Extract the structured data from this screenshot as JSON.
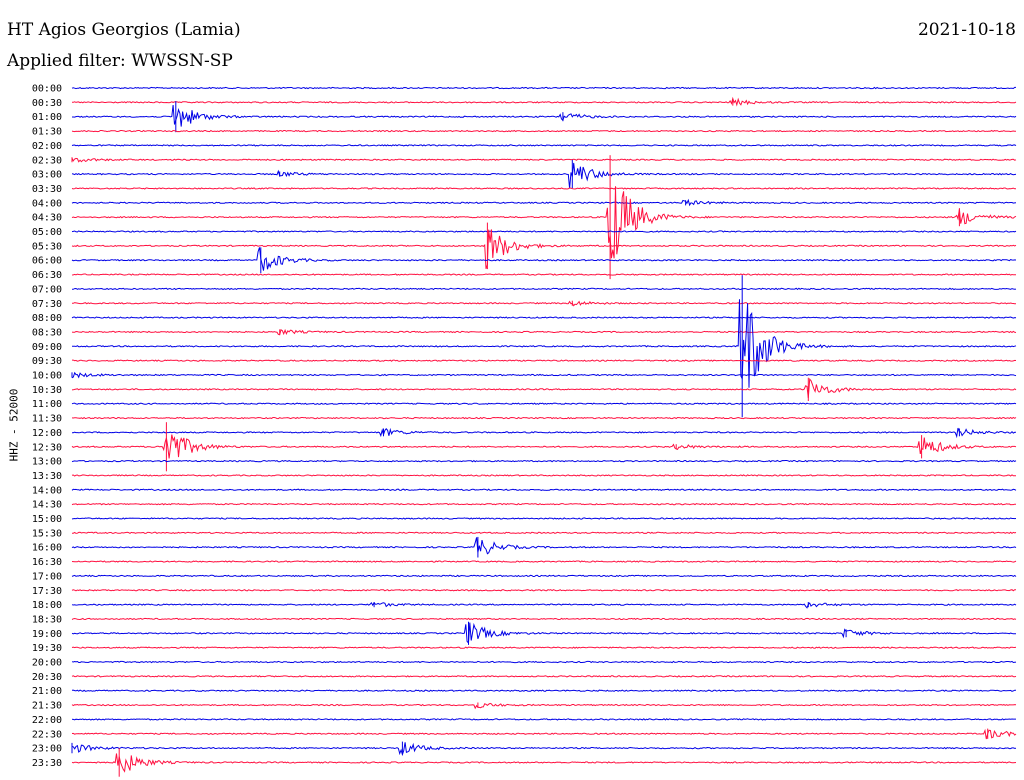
{
  "header": {
    "station": "HT Agios Georgios (Lamia)",
    "date": "2021-10-18",
    "filter": "Applied filter: WWSSN-SP",
    "channel_label": "HHZ - 52000"
  },
  "colors": {
    "blue": "#0000e6",
    "red": "#ff1040",
    "text": "#000000",
    "background": "#ffffff"
  },
  "chart_data": {
    "type": "helicorder",
    "title": "HT Agios Georgios (Lamia)",
    "date": "2021-10-18",
    "ylabel": "HHZ - 52000",
    "minutes_per_line": 30,
    "line_colors": [
      "blue",
      "red"
    ],
    "lines": [
      {
        "label": "00:00",
        "events": []
      },
      {
        "label": "00:30",
        "events": [
          {
            "t": 0.7,
            "amp": 0.25
          }
        ]
      },
      {
        "label": "01:00",
        "events": [
          {
            "t": 0.11,
            "amp": 1.2
          },
          {
            "t": 0.52,
            "amp": 0.35
          }
        ]
      },
      {
        "label": "01:30",
        "events": []
      },
      {
        "label": "02:00",
        "events": []
      },
      {
        "label": "02:30",
        "events": [
          {
            "t": 0.0,
            "amp": 0.2
          }
        ]
      },
      {
        "label": "03:00",
        "events": [
          {
            "t": 0.53,
            "amp": 1.1
          },
          {
            "t": 0.22,
            "amp": 0.2
          }
        ]
      },
      {
        "label": "03:30",
        "events": []
      },
      {
        "label": "04:00",
        "events": [
          {
            "t": 0.65,
            "amp": 0.2
          }
        ]
      },
      {
        "label": "04:30",
        "events": [
          {
            "t": 0.57,
            "amp": 4.8
          },
          {
            "t": 0.94,
            "amp": 0.7
          }
        ]
      },
      {
        "label": "05:00",
        "events": []
      },
      {
        "label": "05:30",
        "events": [
          {
            "t": 0.44,
            "amp": 1.8
          }
        ]
      },
      {
        "label": "06:00",
        "events": [
          {
            "t": 0.2,
            "amp": 1.0
          }
        ]
      },
      {
        "label": "06:30",
        "events": []
      },
      {
        "label": "07:00",
        "events": []
      },
      {
        "label": "07:30",
        "events": [
          {
            "t": 0.53,
            "amp": 0.2
          }
        ]
      },
      {
        "label": "08:00",
        "events": []
      },
      {
        "label": "08:30",
        "events": [
          {
            "t": 0.22,
            "amp": 0.2
          }
        ]
      },
      {
        "label": "09:00",
        "events": [
          {
            "t": 0.71,
            "amp": 5.5
          }
        ]
      },
      {
        "label": "09:30",
        "events": []
      },
      {
        "label": "10:00",
        "events": [
          {
            "t": 0.0,
            "amp": 0.2
          }
        ]
      },
      {
        "label": "10:30",
        "events": [
          {
            "t": 0.78,
            "amp": 0.9
          }
        ]
      },
      {
        "label": "11:00",
        "events": []
      },
      {
        "label": "11:30",
        "events": []
      },
      {
        "label": "12:00",
        "events": [
          {
            "t": 0.33,
            "amp": 0.3
          },
          {
            "t": 0.94,
            "amp": 0.3
          }
        ]
      },
      {
        "label": "12:30",
        "events": [
          {
            "t": 0.1,
            "amp": 1.9
          },
          {
            "t": 0.9,
            "amp": 0.9
          },
          {
            "t": 0.64,
            "amp": 0.2
          }
        ]
      },
      {
        "label": "13:00",
        "events": []
      },
      {
        "label": "13:30",
        "events": []
      },
      {
        "label": "14:00",
        "events": []
      },
      {
        "label": "14:30",
        "events": []
      },
      {
        "label": "15:00",
        "events": []
      },
      {
        "label": "15:30",
        "events": []
      },
      {
        "label": "16:00",
        "events": [
          {
            "t": 0.43,
            "amp": 0.8
          }
        ]
      },
      {
        "label": "16:30",
        "events": []
      },
      {
        "label": "17:00",
        "events": []
      },
      {
        "label": "17:30",
        "events": []
      },
      {
        "label": "18:00",
        "events": [
          {
            "t": 0.32,
            "amp": 0.2
          },
          {
            "t": 0.78,
            "amp": 0.2
          }
        ]
      },
      {
        "label": "18:30",
        "events": []
      },
      {
        "label": "19:00",
        "events": [
          {
            "t": 0.42,
            "amp": 0.9
          },
          {
            "t": 0.82,
            "amp": 0.3
          }
        ]
      },
      {
        "label": "19:30",
        "events": []
      },
      {
        "label": "20:00",
        "events": []
      },
      {
        "label": "20:30",
        "events": []
      },
      {
        "label": "21:00",
        "events": []
      },
      {
        "label": "21:30",
        "events": [
          {
            "t": 0.43,
            "amp": 0.2
          }
        ]
      },
      {
        "label": "22:00",
        "events": []
      },
      {
        "label": "22:30",
        "events": [
          {
            "t": 0.97,
            "amp": 0.4
          }
        ]
      },
      {
        "label": "23:00",
        "events": [
          {
            "t": 0.0,
            "amp": 0.4
          },
          {
            "t": 0.35,
            "amp": 0.5
          }
        ]
      },
      {
        "label": "23:30",
        "events": [
          {
            "t": 0.05,
            "amp": 1.1
          }
        ]
      }
    ]
  }
}
